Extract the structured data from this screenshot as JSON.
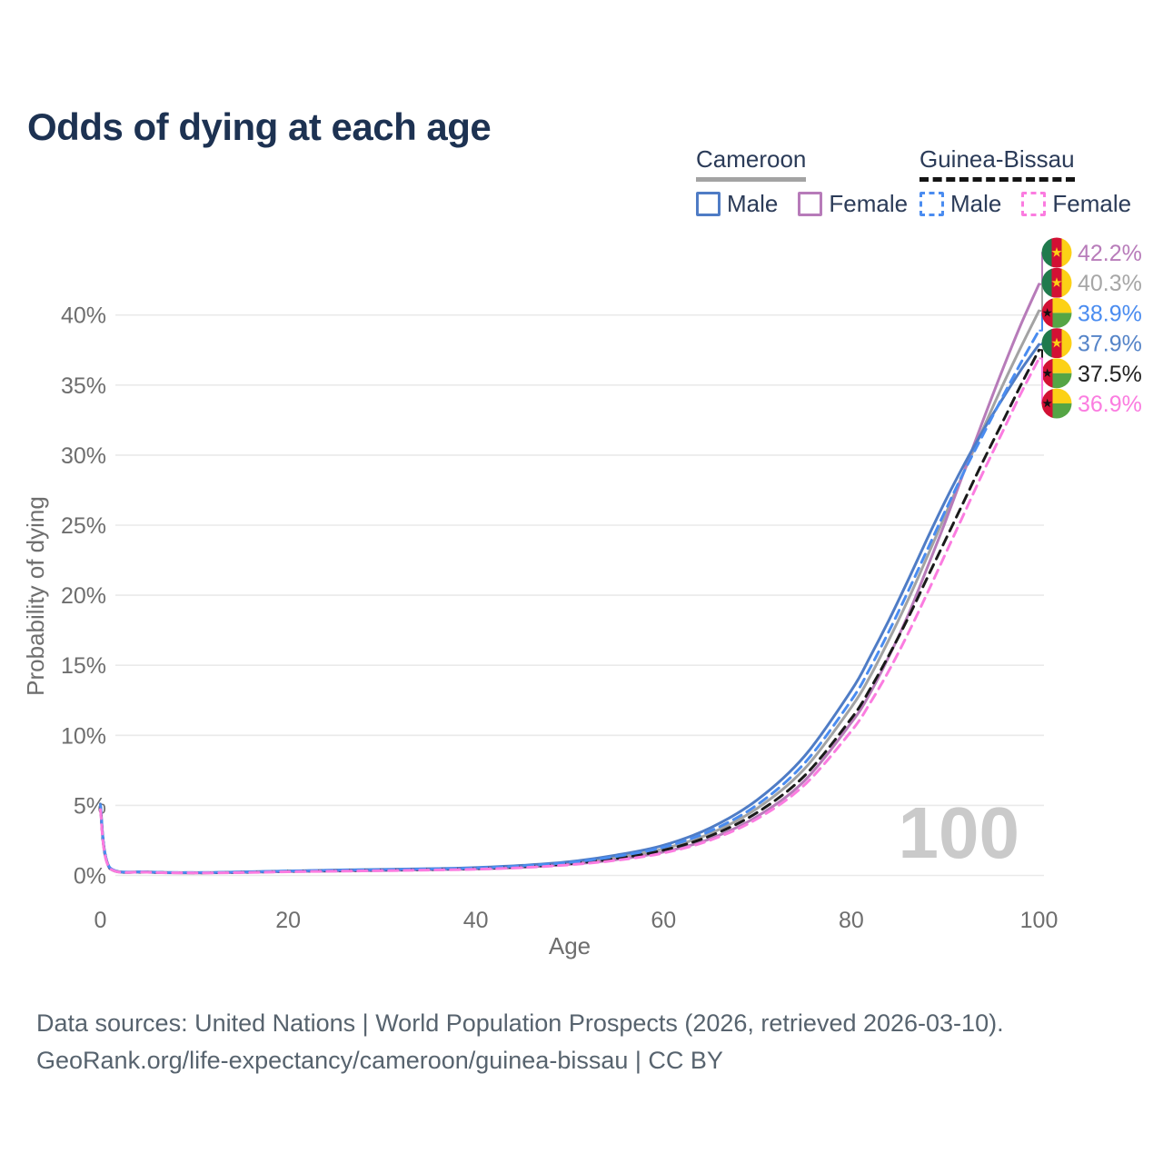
{
  "title": "Odds of dying at each age",
  "legend": {
    "groups": [
      {
        "id": "cameroon",
        "label": "Cameroon",
        "line_style": "solid",
        "underline_color": "#a3a3a3",
        "items": [
          {
            "label": "Male",
            "color": "#4f7cc5",
            "dashed": false
          },
          {
            "label": "Female",
            "color": "#b77bb9",
            "dashed": false
          }
        ]
      },
      {
        "id": "guinea-bissau",
        "label": "Guinea-Bissau",
        "line_style": "dashed",
        "underline_color": "#141414",
        "items": [
          {
            "label": "Male",
            "color": "#4a8cf0",
            "dashed": true
          },
          {
            "label": "Female",
            "color": "#fb7ce0",
            "dashed": true
          }
        ]
      }
    ]
  },
  "axes": {
    "y_title": "Probability of dying",
    "y_ticks": [
      "0%",
      "5%",
      "10%",
      "15%",
      "20%",
      "25%",
      "30%",
      "35%",
      "40%"
    ],
    "y_tick_values": [
      0,
      5,
      10,
      15,
      20,
      25,
      30,
      35,
      40
    ],
    "x_title": "Age",
    "x_ticks": [
      "0",
      "20",
      "40",
      "60",
      "80",
      "100"
    ],
    "x_tick_values": [
      0,
      20,
      40,
      60,
      80,
      100
    ],
    "grid_color": "#eaeaea"
  },
  "watermark": "100",
  "footer": {
    "line1": "Data sources: United Nations | World Population Prospects (2026, retrieved 2026-03-10).",
    "line2": "GeoRank.org/life-expectancy/cameroon/guinea-bissau | CC BY"
  },
  "flag_colors": {
    "cameroon": {
      "green": "#1f7a4d",
      "red": "#d21034",
      "yellow": "#fcd116",
      "star": "#fcd116"
    },
    "guinea_bissau": {
      "red": "#d21034",
      "yellow": "#fcd116",
      "green": "#55a545",
      "star": "#111111"
    }
  },
  "chart_data": {
    "type": "line",
    "title": "Odds of dying at each age",
    "xlabel": "Age",
    "ylabel": "Probability of dying",
    "xlim": [
      0,
      100
    ],
    "ylim_pct": [
      0,
      44
    ],
    "grid": "horizontal",
    "legend_position": "top-right",
    "ages": [
      0,
      1,
      5,
      10,
      15,
      20,
      25,
      30,
      35,
      40,
      45,
      50,
      55,
      60,
      65,
      70,
      75,
      80,
      82,
      84,
      86,
      88,
      90,
      92,
      94,
      96,
      98,
      100
    ],
    "draw_order": [
      1,
      0,
      3,
      4,
      2,
      5
    ],
    "series": [
      {
        "name": "Cameroon Female",
        "country": "Cameroon",
        "sex": "Female",
        "color": "#b77bb9",
        "label_color": "#b87cba",
        "dashed": false,
        "flag": "cameroon",
        "end_label": "42.2%",
        "end_value_pct": 42.2,
        "values_pct": [
          4.8,
          0.5,
          0.23,
          0.18,
          0.21,
          0.27,
          0.31,
          0.35,
          0.4,
          0.46,
          0.58,
          0.79,
          1.13,
          1.67,
          2.62,
          4.22,
          6.75,
          10.9,
          13.0,
          15.6,
          18.5,
          21.8,
          25.2,
          28.8,
          32.4,
          35.9,
          39.2,
          42.2
        ]
      },
      {
        "name": "Cameroon Both sexes",
        "country": "Cameroon",
        "sex": "Both",
        "color": "#a3a3a3",
        "label_color": "#a6a6a6",
        "dashed": false,
        "flag": "cameroon",
        "end_label": "40.3%",
        "end_value_pct": 40.3,
        "values_pct": [
          4.95,
          0.53,
          0.24,
          0.19,
          0.23,
          0.3,
          0.35,
          0.39,
          0.44,
          0.51,
          0.65,
          0.88,
          1.28,
          1.9,
          3.0,
          4.8,
          7.6,
          12.0,
          14.2,
          16.8,
          19.6,
          22.6,
          25.7,
          28.8,
          31.8,
          34.8,
          37.6,
          40.3
        ]
      },
      {
        "name": "Guinea-Bissau Male",
        "country": "Guinea-Bissau",
        "sex": "Male",
        "color": "#4a8cf0",
        "label_color": "#4a8cf0",
        "dashed": true,
        "flag": "guinea_bissau",
        "end_label": "38.9%",
        "end_value_pct": 38.9,
        "values_pct": [
          5.0,
          0.55,
          0.25,
          0.2,
          0.24,
          0.31,
          0.37,
          0.41,
          0.46,
          0.53,
          0.68,
          0.93,
          1.36,
          2.02,
          3.18,
          5.05,
          8.0,
          12.5,
          14.8,
          17.4,
          20.2,
          23.1,
          26.0,
          28.8,
          31.4,
          34.0,
          36.5,
          38.9
        ]
      },
      {
        "name": "Cameroon Male",
        "country": "Cameroon",
        "sex": "Male",
        "color": "#4f7cc5",
        "label_color": "#5584c8",
        "dashed": false,
        "flag": "cameroon",
        "end_label": "37.9%",
        "end_value_pct": 37.9,
        "values_pct": [
          5.1,
          0.55,
          0.25,
          0.2,
          0.25,
          0.32,
          0.38,
          0.43,
          0.48,
          0.56,
          0.72,
          0.98,
          1.45,
          2.15,
          3.4,
          5.4,
          8.5,
          13.2,
          15.6,
          18.2,
          21.0,
          23.9,
          26.7,
          29.3,
          31.7,
          33.9,
          36.0,
          37.9
        ]
      },
      {
        "name": "Guinea-Bissau Both sexes",
        "country": "Guinea-Bissau",
        "sex": "Both",
        "color": "#1a1a1a",
        "label_color": "#222222",
        "dashed": true,
        "flag": "guinea_bissau",
        "end_label": "37.5%",
        "end_value_pct": 37.5,
        "values_pct": [
          4.9,
          0.52,
          0.24,
          0.19,
          0.22,
          0.29,
          0.34,
          0.38,
          0.43,
          0.49,
          0.62,
          0.84,
          1.22,
          1.8,
          2.83,
          4.5,
          7.1,
          11.2,
          13.3,
          15.7,
          18.3,
          21.1,
          23.9,
          26.7,
          29.5,
          32.2,
          34.9,
          37.5
        ]
      },
      {
        "name": "Guinea-Bissau Female",
        "country": "Guinea-Bissau",
        "sex": "Female",
        "color": "#fb7ce0",
        "label_color": "#fb7ce0",
        "dashed": true,
        "flag": "guinea_bissau",
        "end_label": "36.9%",
        "end_value_pct": 36.9,
        "values_pct": [
          4.7,
          0.5,
          0.23,
          0.18,
          0.2,
          0.26,
          0.3,
          0.34,
          0.38,
          0.44,
          0.56,
          0.76,
          1.08,
          1.6,
          2.52,
          4.05,
          6.45,
          10.3,
          12.3,
          14.6,
          17.2,
          20.0,
          22.9,
          25.8,
          28.7,
          31.5,
          34.3,
          36.9
        ]
      }
    ]
  }
}
